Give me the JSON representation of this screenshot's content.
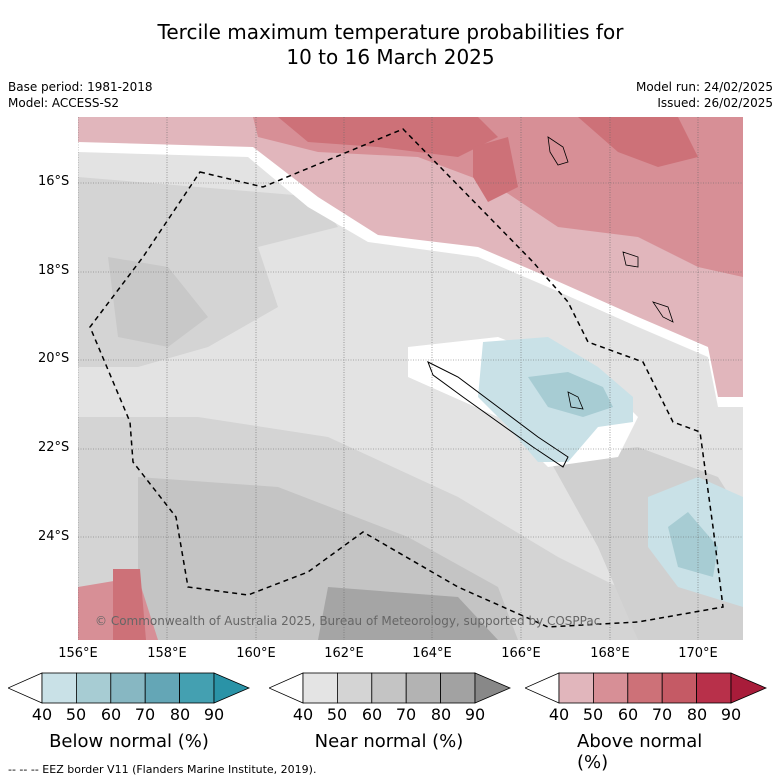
{
  "title_line1": "Tercile maximum temperature probabilities for",
  "title_line2": "10 to 16 March 2025",
  "base_period": "Base period: 1981-2018",
  "model": "Model: ACCESS-S2",
  "model_run": "Model run: 24/02/2025",
  "issued": "Issued: 26/02/2025",
  "copyright": "© Commonwealth of Australia 2025, Bureau of Meteorology, supported by COSPPac",
  "lat_labels": [
    "16°S",
    "18°S",
    "20°S",
    "22°S",
    "24°S"
  ],
  "lon_labels": [
    "156°E",
    "158°E",
    "160°E",
    "162°E",
    "164°E",
    "166°E",
    "168°E",
    "170°E"
  ],
  "colorbars": [
    {
      "label": "Below normal (%)",
      "ticks": [
        "40",
        "50",
        "60",
        "70",
        "80",
        "90"
      ],
      "colors": [
        "#ffffff",
        "#c9e1e7",
        "#a7ccd3",
        "#87b7c2",
        "#64a6b6",
        "#44a0b1",
        "#2a93a7"
      ]
    },
    {
      "label": "Near normal (%)",
      "ticks": [
        "40",
        "50",
        "60",
        "70",
        "80",
        "90"
      ],
      "colors": [
        "#ffffff",
        "#e4e4e4",
        "#d4d4d4",
        "#c4c4c4",
        "#b3b3b3",
        "#a2a2a2",
        "#888888"
      ]
    },
    {
      "label": "Above normal (%)",
      "ticks": [
        "40",
        "50",
        "60",
        "70",
        "80",
        "90"
      ],
      "colors": [
        "#ffffff",
        "#e1b6bc",
        "#d78f96",
        "#cd7178",
        "#c55a65",
        "#b8304a",
        "#a81c3a"
      ]
    }
  ],
  "footer": "-- -- -- EEZ border V11 (Flanders Marine Institute, 2019)."
}
